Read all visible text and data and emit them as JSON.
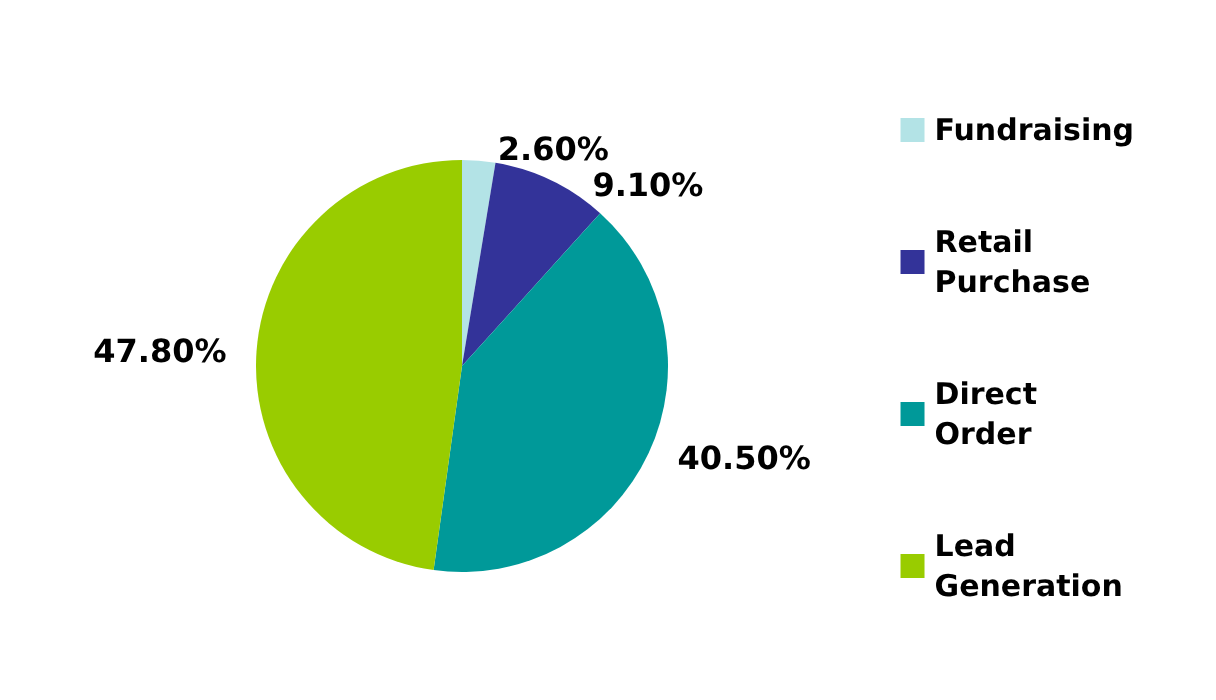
{
  "chart_data": {
    "type": "pie",
    "categories": [
      "Fundraising",
      "Retail Purchase",
      "Direct Order",
      "Lead Generation"
    ],
    "values": [
      2.6,
      9.1,
      40.5,
      47.8
    ],
    "colors": [
      "#b3e3e6",
      "#333399",
      "#009999",
      "#99cc00"
    ],
    "value_labels": [
      "2.60%",
      "9.10%",
      "40.50%",
      "47.80%"
    ],
    "legend": "right"
  }
}
